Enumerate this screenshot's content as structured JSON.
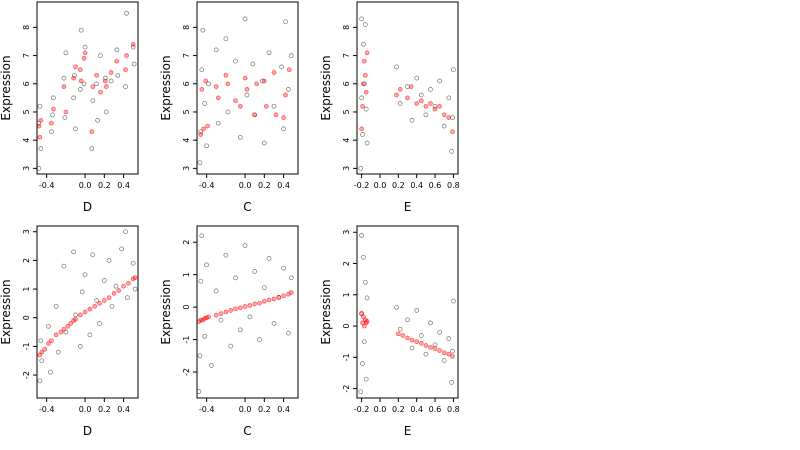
{
  "figure": {
    "background": "#ffffff",
    "observed_color": "#000000",
    "fitted_color": "#ff0000"
  },
  "chart_data": [
    {
      "type": "scatter",
      "xlabel": "D",
      "ylabel": "Expression",
      "xlim": [
        -0.5,
        0.55
      ],
      "ylim": [
        2.8,
        8.9
      ],
      "xticks": [
        -0.4,
        0.0,
        0.2,
        0.4
      ],
      "xtick_labels": [
        "-0.4",
        "0.0",
        "0.2",
        "0.4"
      ],
      "yticks": [
        3,
        4,
        5,
        6,
        7,
        8
      ],
      "ytick_labels": [
        "3",
        "4",
        "5",
        "6",
        "7",
        "8"
      ],
      "grid": false,
      "legend": "none",
      "point_groups": [
        {
          "kind": "observed",
          "x": [
            -0.48,
            -0.48,
            -0.47,
            -0.46,
            -0.35,
            -0.34,
            -0.33,
            -0.22,
            -0.21,
            -0.2,
            -0.12,
            -0.11,
            -0.1,
            -0.05,
            -0.04,
            -0.01,
            0.0,
            0.07,
            0.08,
            0.12,
            0.13,
            0.16,
            0.21,
            0.22,
            0.27,
            0.33,
            0.34,
            0.42,
            0.43,
            0.5,
            0.51
          ],
          "y": [
            3.0,
            4.6,
            5.2,
            3.7,
            4.3,
            4.9,
            5.5,
            6.2,
            4.8,
            7.1,
            5.5,
            6.3,
            4.4,
            5.8,
            7.9,
            6.0,
            7.3,
            3.7,
            5.4,
            6.0,
            4.7,
            7.0,
            6.2,
            5.0,
            6.1,
            7.2,
            6.3,
            5.9,
            8.5,
            7.3,
            6.7
          ]
        },
        {
          "kind": "fitted",
          "x": [
            -0.48,
            -0.47,
            -0.46,
            -0.35,
            -0.33,
            -0.22,
            -0.2,
            -0.12,
            -0.1,
            -0.05,
            -0.04,
            -0.01,
            0.0,
            0.07,
            0.08,
            0.12,
            0.16,
            0.21,
            0.22,
            0.27,
            0.33,
            0.42,
            0.43,
            0.5
          ],
          "y": [
            4.5,
            4.1,
            4.7,
            4.6,
            5.1,
            5.9,
            5.0,
            6.2,
            6.6,
            6.5,
            6.1,
            6.9,
            7.1,
            4.3,
            5.9,
            6.3,
            5.7,
            6.1,
            5.9,
            6.4,
            6.8,
            6.5,
            7.0,
            7.4
          ]
        }
      ]
    },
    {
      "type": "scatter",
      "xlabel": "C",
      "ylabel": "Expression",
      "xlim": [
        -0.5,
        0.55
      ],
      "ylim": [
        2.8,
        8.9
      ],
      "xticks": [
        -0.4,
        0.0,
        0.2,
        0.4
      ],
      "xtick_labels": [
        "-0.4",
        "0.0",
        "0.2",
        "0.4"
      ],
      "yticks": [
        3,
        4,
        5,
        6,
        7,
        8
      ],
      "ytick_labels": [
        "3",
        "4",
        "5",
        "6",
        "7",
        "8"
      ],
      "grid": false,
      "legend": "none",
      "point_groups": [
        {
          "kind": "observed",
          "x": [
            -0.47,
            -0.46,
            -0.45,
            -0.44,
            -0.42,
            -0.4,
            -0.38,
            -0.3,
            -0.28,
            -0.2,
            -0.18,
            -0.1,
            -0.05,
            0.0,
            0.02,
            0.08,
            0.1,
            0.18,
            0.2,
            0.25,
            0.3,
            0.38,
            0.4,
            0.42,
            0.45,
            0.48
          ],
          "y": [
            3.2,
            4.3,
            6.5,
            7.9,
            5.3,
            3.8,
            6.0,
            7.2,
            4.6,
            7.6,
            5.0,
            6.8,
            4.1,
            8.3,
            5.6,
            6.7,
            4.9,
            6.1,
            3.9,
            7.1,
            5.2,
            6.6,
            4.4,
            8.2,
            5.8,
            7.0
          ]
        },
        {
          "kind": "fitted",
          "x": [
            -0.46,
            -0.45,
            -0.43,
            -0.41,
            -0.39,
            -0.3,
            -0.28,
            -0.2,
            -0.18,
            -0.1,
            -0.05,
            0.0,
            0.02,
            0.1,
            0.12,
            0.2,
            0.22,
            0.3,
            0.32,
            0.4,
            0.42,
            0.46
          ],
          "y": [
            4.2,
            5.8,
            4.4,
            6.1,
            4.5,
            5.9,
            5.5,
            6.3,
            6.0,
            5.4,
            5.2,
            6.2,
            5.8,
            4.9,
            6.0,
            6.1,
            5.2,
            6.4,
            4.9,
            4.8,
            5.6,
            6.5
          ]
        }
      ]
    },
    {
      "type": "scatter",
      "xlabel": "E",
      "ylabel": "Expression",
      "xlim": [
        -0.25,
        0.85
      ],
      "ylim": [
        2.8,
        8.9
      ],
      "xticks": [
        -0.2,
        0.0,
        0.2,
        0.4,
        0.6,
        0.8
      ],
      "xtick_labels": [
        "-0.2",
        "0.0",
        "0.2",
        "0.4",
        "0.6",
        "0.8"
      ],
      "yticks": [
        3,
        4,
        5,
        6,
        7,
        8
      ],
      "ytick_labels": [
        "3",
        "4",
        "5",
        "6",
        "7",
        "8"
      ],
      "grid": false,
      "legend": "none",
      "point_groups": [
        {
          "kind": "observed",
          "x": [
            -0.21,
            -0.2,
            -0.2,
            -0.19,
            -0.18,
            -0.17,
            -0.16,
            -0.15,
            -0.14,
            0.18,
            0.22,
            0.3,
            0.35,
            0.4,
            0.45,
            0.5,
            0.55,
            0.6,
            0.65,
            0.7,
            0.75,
            0.78,
            0.79,
            0.8
          ],
          "y": [
            3.0,
            8.3,
            5.5,
            4.2,
            7.4,
            6.0,
            8.1,
            5.1,
            3.9,
            6.6,
            5.3,
            5.9,
            4.7,
            6.2,
            5.6,
            4.9,
            5.8,
            5.2,
            6.1,
            4.5,
            5.5,
            3.6,
            4.8,
            6.5
          ]
        },
        {
          "kind": "fitted",
          "x": [
            -0.2,
            -0.19,
            -0.18,
            -0.17,
            -0.16,
            -0.15,
            -0.14,
            0.18,
            0.22,
            0.3,
            0.34,
            0.4,
            0.45,
            0.5,
            0.55,
            0.6,
            0.65,
            0.7,
            0.75,
            0.79
          ],
          "y": [
            4.4,
            5.2,
            6.0,
            6.8,
            6.3,
            5.7,
            7.1,
            5.6,
            5.8,
            5.5,
            5.9,
            5.3,
            5.4,
            5.2,
            5.3,
            5.1,
            5.2,
            4.9,
            4.8,
            4.3
          ]
        }
      ]
    },
    {
      "type": "scatter",
      "xlabel": "D",
      "ylabel": "Expression",
      "xlim": [
        -0.5,
        0.55
      ],
      "ylim": [
        -2.8,
        3.2
      ],
      "xticks": [
        -0.4,
        0.0,
        0.2,
        0.4
      ],
      "xtick_labels": [
        "-0.4",
        "0.0",
        "0.2",
        "0.4"
      ],
      "yticks": [
        -2,
        -1,
        0,
        1,
        2,
        3
      ],
      "ytick_labels": [
        "-2",
        "-1",
        "0",
        "1",
        "2",
        "3"
      ],
      "grid": false,
      "legend": "none",
      "point_groups": [
        {
          "kind": "observed",
          "x": [
            -0.47,
            -0.46,
            -0.45,
            -0.38,
            -0.36,
            -0.3,
            -0.28,
            -0.22,
            -0.2,
            -0.12,
            -0.1,
            -0.05,
            -0.03,
            0.0,
            0.05,
            0.08,
            0.12,
            0.15,
            0.2,
            0.25,
            0.28,
            0.32,
            0.38,
            0.42,
            0.44,
            0.5,
            0.52
          ],
          "y": [
            -2.2,
            -0.8,
            -1.5,
            -0.3,
            -1.9,
            0.4,
            -1.2,
            1.8,
            -0.5,
            2.3,
            0.1,
            -1.0,
            0.9,
            1.5,
            -0.6,
            2.2,
            0.6,
            -0.2,
            1.3,
            2.0,
            0.4,
            1.1,
            2.4,
            3.0,
            0.7,
            1.9,
            1.0
          ]
        },
        {
          "kind": "fitted",
          "x": [
            -0.47,
            -0.45,
            -0.42,
            -0.38,
            -0.35,
            -0.3,
            -0.25,
            -0.22,
            -0.18,
            -0.15,
            -0.12,
            -0.1,
            -0.05,
            0.0,
            0.05,
            0.1,
            0.15,
            0.2,
            0.25,
            0.3,
            0.35,
            0.4,
            0.45,
            0.5,
            0.52
          ],
          "y": [
            -1.3,
            -1.2,
            -1.1,
            -0.9,
            -0.8,
            -0.6,
            -0.5,
            -0.4,
            -0.3,
            -0.2,
            -0.1,
            -0.05,
            0.1,
            0.2,
            0.3,
            0.4,
            0.5,
            0.6,
            0.7,
            0.85,
            0.95,
            1.1,
            1.2,
            1.35,
            1.4
          ]
        }
      ]
    },
    {
      "type": "scatter",
      "xlabel": "C",
      "ylabel": "Expression",
      "xlim": [
        -0.5,
        0.55
      ],
      "ylim": [
        -2.8,
        2.5
      ],
      "xticks": [
        -0.4,
        0.0,
        0.2,
        0.4
      ],
      "xtick_labels": [
        "-0.4",
        "0.0",
        "0.2",
        "0.4"
      ],
      "yticks": [
        -2,
        -1,
        0,
        1,
        2
      ],
      "ytick_labels": [
        "-2",
        "-1",
        "0",
        "1",
        "2"
      ],
      "grid": false,
      "legend": "none",
      "point_groups": [
        {
          "kind": "observed",
          "x": [
            -0.48,
            -0.47,
            -0.46,
            -0.45,
            -0.42,
            -0.4,
            -0.35,
            -0.3,
            -0.25,
            -0.2,
            -0.15,
            -0.1,
            -0.05,
            0.0,
            0.05,
            0.1,
            0.15,
            0.2,
            0.25,
            0.3,
            0.35,
            0.4,
            0.45,
            0.48
          ],
          "y": [
            -2.6,
            -1.5,
            0.8,
            2.2,
            -0.9,
            1.3,
            -1.8,
            0.5,
            -0.4,
            1.6,
            -1.2,
            0.9,
            -0.7,
            1.9,
            -0.3,
            1.1,
            -1.0,
            0.6,
            1.5,
            -0.5,
            0.3,
            1.2,
            -0.8,
            0.9
          ]
        },
        {
          "kind": "fitted",
          "x": [
            -0.48,
            -0.46,
            -0.44,
            -0.42,
            -0.4,
            -0.38,
            -0.3,
            -0.25,
            -0.2,
            -0.15,
            -0.1,
            -0.05,
            0.0,
            0.05,
            0.1,
            0.15,
            0.2,
            0.25,
            0.3,
            0.35,
            0.4,
            0.45,
            0.48
          ],
          "y": [
            -0.45,
            -0.4,
            -0.4,
            -0.35,
            -0.33,
            -0.3,
            -0.25,
            -0.2,
            -0.15,
            -0.1,
            -0.05,
            -0.02,
            0.02,
            0.05,
            0.1,
            0.12,
            0.18,
            0.22,
            0.25,
            0.3,
            0.35,
            0.4,
            0.45
          ]
        }
      ]
    },
    {
      "type": "scatter",
      "xlabel": "E",
      "ylabel": "Expression",
      "xlim": [
        -0.25,
        0.85
      ],
      "ylim": [
        -2.3,
        3.2
      ],
      "xticks": [
        -0.2,
        0.0,
        0.2,
        0.4,
        0.6,
        0.8
      ],
      "xtick_labels": [
        "-0.2",
        "0.0",
        "0.2",
        "0.4",
        "0.6",
        "0.8"
      ],
      "yticks": [
        -2,
        -1,
        0,
        1,
        2,
        3
      ],
      "ytick_labels": [
        "-2",
        "-1",
        "0",
        "1",
        "2",
        "3"
      ],
      "grid": false,
      "legend": "none",
      "point_groups": [
        {
          "kind": "observed",
          "x": [
            -0.21,
            -0.2,
            -0.2,
            -0.19,
            -0.18,
            -0.17,
            -0.16,
            -0.15,
            -0.14,
            0.18,
            0.22,
            0.3,
            0.35,
            0.4,
            0.45,
            0.5,
            0.55,
            0.6,
            0.65,
            0.7,
            0.75,
            0.78,
            0.79,
            0.8
          ],
          "y": [
            -2.1,
            2.9,
            0.4,
            -1.2,
            2.2,
            -0.5,
            1.4,
            -1.7,
            0.9,
            0.6,
            -0.1,
            0.2,
            -0.7,
            0.5,
            -0.3,
            -0.9,
            0.1,
            -0.6,
            -0.2,
            -1.1,
            -0.4,
            -1.8,
            -0.8,
            0.8
          ]
        },
        {
          "kind": "fitted",
          "x": [
            -0.2,
            -0.19,
            -0.18,
            -0.17,
            -0.16,
            -0.15,
            -0.14,
            0.2,
            0.25,
            0.3,
            0.35,
            0.4,
            0.45,
            0.5,
            0.55,
            0.6,
            0.65,
            0.7,
            0.75,
            0.79
          ],
          "y": [
            0.4,
            0.1,
            0.3,
            0.0,
            0.2,
            0.1,
            0.15,
            -0.25,
            -0.3,
            -0.38,
            -0.45,
            -0.5,
            -0.55,
            -0.62,
            -0.68,
            -0.72,
            -0.78,
            -0.85,
            -0.9,
            -0.97
          ]
        }
      ]
    }
  ]
}
